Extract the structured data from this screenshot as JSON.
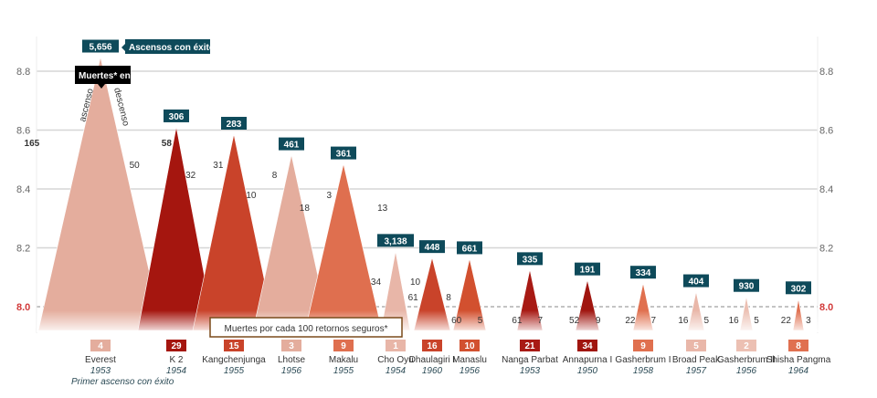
{
  "chart_data": {
    "type": "area",
    "title": "",
    "yaxis": {
      "ticks": [
        "8.0",
        "8.2",
        "8.4",
        "8.6",
        "8.8"
      ],
      "range": [
        7.93,
        8.9
      ],
      "grid": true,
      "both_sides": true,
      "highlight_tick": "8.0"
    },
    "legend": {
      "ascents_label": "Ascensos con éxito*",
      "deaths_label": "Muertes* en:",
      "ascent_word": "ascenso",
      "descent_word": "descenso",
      "rate_label": "Muertes por cada 100 retornos seguros*",
      "first_ascent_label": "Primer ascenso con éxito"
    },
    "peaks": [
      {
        "name": "Everest",
        "height_km": 8.848,
        "first_ascent": "1953",
        "ascents": "5,656",
        "deaths_ascent": "165",
        "deaths_descent": "58",
        "rate": "4",
        "color": "#e4ad9d"
      },
      {
        "name": "K 2",
        "height_km": 8.611,
        "first_ascent": "1954",
        "ascents": "306",
        "deaths_ascent": "50",
        "deaths_descent": "31",
        "rate": "29",
        "color": "#a5160f"
      },
      {
        "name": "Kangchenjunga",
        "height_km": 8.586,
        "first_ascent": "1955",
        "ascents": "283",
        "deaths_ascent": "32",
        "deaths_descent": "8",
        "rate": "15",
        "color": "#c9432a"
      },
      {
        "name": "Lhotse",
        "height_km": 8.516,
        "first_ascent": "1956",
        "ascents": "461",
        "deaths_ascent": "10",
        "deaths_descent": "3",
        "rate": "3",
        "color": "#e4ad9d"
      },
      {
        "name": "Makalu",
        "height_km": 8.485,
        "first_ascent": "1955",
        "ascents": "361",
        "deaths_ascent": "18",
        "deaths_descent": "13",
        "rate": "9",
        "color": "#df6f4f"
      },
      {
        "name": "Cho Oyu",
        "height_km": 8.188,
        "first_ascent": "1954",
        "ascents": "3,138",
        "deaths_ascent": "34",
        "deaths_descent": "10",
        "rate": "1",
        "color": "#e8b6a8"
      },
      {
        "name": "Dhaulagiri I",
        "height_km": 8.167,
        "first_ascent": "1960",
        "ascents": "448",
        "deaths_ascent": "61",
        "deaths_descent": "8",
        "rate": "16",
        "color": "#c9432a"
      },
      {
        "name": "Manaslu",
        "height_km": 8.163,
        "first_ascent": "1956",
        "ascents": "661",
        "deaths_ascent": "60",
        "deaths_descent": "5",
        "rate": "10",
        "color": "#d2502f"
      },
      {
        "name": "Nanga Parbat",
        "height_km": 8.126,
        "first_ascent": "1953",
        "ascents": "335",
        "deaths_ascent": "61",
        "deaths_descent": "7",
        "rate": "21",
        "color": "#a81a14"
      },
      {
        "name": "Annapurna I",
        "height_km": 8.091,
        "first_ascent": "1950",
        "ascents": "191",
        "deaths_ascent": "52",
        "deaths_descent": "9",
        "rate": "34",
        "color": "#a0150f"
      },
      {
        "name": "Gasherbrum I",
        "height_km": 8.08,
        "first_ascent": "1958",
        "ascents": "334",
        "deaths_ascent": "22",
        "deaths_descent": "7",
        "rate": "9",
        "color": "#e0704f"
      },
      {
        "name": "Broad Peak",
        "height_km": 8.051,
        "first_ascent": "1957",
        "ascents": "404",
        "deaths_ascent": "16",
        "deaths_descent": "5",
        "rate": "5",
        "color": "#e9b7a9"
      },
      {
        "name": "Gasherbrum II",
        "height_km": 8.035,
        "first_ascent": "1956",
        "ascents": "930",
        "deaths_ascent": "16",
        "deaths_descent": "5",
        "rate": "2",
        "color": "#ecc0b3"
      },
      {
        "name": "Shisha Pangma",
        "height_km": 8.027,
        "first_ascent": "1964",
        "ascents": "302",
        "deaths_ascent": "22",
        "deaths_descent": "3",
        "rate": "8",
        "color": "#e07050"
      }
    ],
    "colors": {
      "count_box": "#0e4a5a",
      "first_ascent_text": "#1f5fa0",
      "rate_border": "#7a4a1a"
    }
  }
}
